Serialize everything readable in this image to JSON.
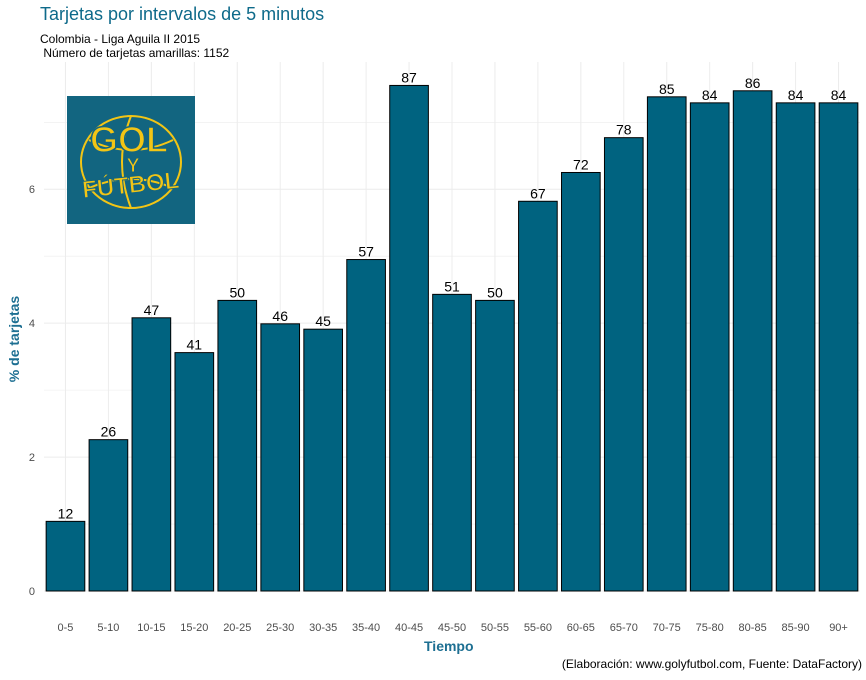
{
  "colors": {
    "bar_fill": "#006380",
    "bar_stroke": "#000000",
    "title": "#0e6a8a",
    "axis_title": "#1d6f92",
    "grid": "#ececec",
    "logo_bg": "#126580",
    "logo_fg": "#f2c515"
  },
  "logo": {
    "line1": "GOL",
    "line2": "Y",
    "line3": "FÚTBOL"
  },
  "chart_data": {
    "type": "bar",
    "title": "Tarjetas por intervalos de 5 minutos",
    "subtitle_line1": "Colombia - Liga Aguila II 2015",
    "subtitle_line2": " Número de tarjetas amarillas: 1152",
    "caption": "(Elaboración: www.golyfutbol.com, Fuente: DataFactory)",
    "xlabel": "Tiempo",
    "ylabel": "% de tarjetas",
    "ylim": [
      0,
      7.9
    ],
    "yticks": [
      0,
      2,
      4,
      6
    ],
    "total": 1152,
    "categories": [
      "0-5",
      "5-10",
      "10-15",
      "15-20",
      "20-25",
      "25-30",
      "30-35",
      "35-40",
      "40-45",
      "45-50",
      "50-55",
      "55-60",
      "60-65",
      "65-70",
      "70-75",
      "75-80",
      "80-85",
      "85-90",
      "90+"
    ],
    "counts": [
      12,
      26,
      47,
      41,
      50,
      46,
      45,
      57,
      87,
      51,
      50,
      67,
      72,
      78,
      85,
      84,
      86,
      84,
      84
    ],
    "values": [
      1.04,
      2.26,
      4.08,
      3.56,
      4.34,
      3.99,
      3.91,
      4.95,
      7.55,
      4.43,
      4.34,
      5.82,
      6.25,
      6.77,
      7.38,
      7.29,
      7.47,
      7.29,
      7.29
    ]
  }
}
